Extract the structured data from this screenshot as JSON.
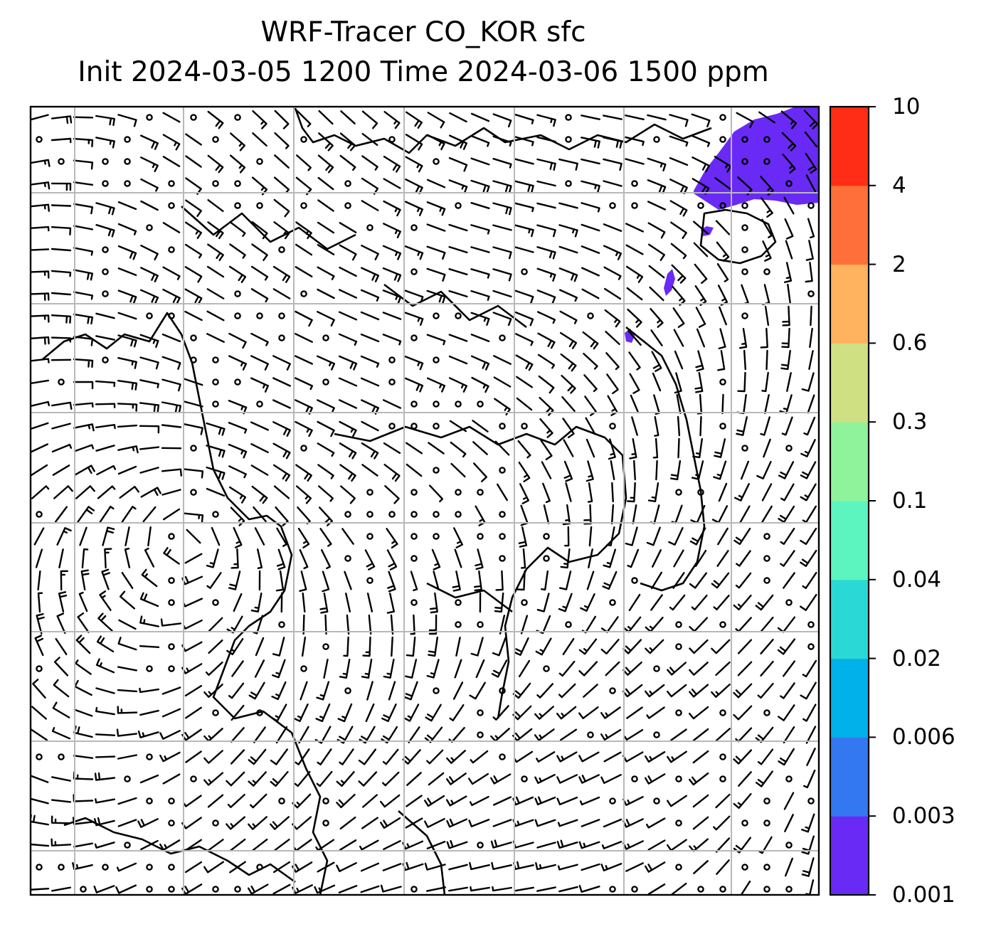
{
  "title": {
    "line1": "WRF-Tracer CO_KOR sfc",
    "line2": "Init 2024-03-05 1200 Time 2024-03-06 1500 ppm"
  },
  "colorbar": {
    "levels": [
      "0.001",
      "0.003",
      "0.006",
      "0.02",
      "0.04",
      "0.1",
      "0.3",
      "0.6",
      "2",
      "4",
      "10"
    ],
    "colors": [
      "#6a2af5",
      "#3478f1",
      "#00b1ea",
      "#2ad9d5",
      "#5cf5c0",
      "#8ff39b",
      "#cfe082",
      "#ffb35f",
      "#ff6f3a",
      "#ff2d16"
    ]
  },
  "map": {
    "grid_color": "#b8b8b8",
    "tracer_fill_color": "#6a2af5",
    "field": "CO_KOR surface tracer concentration with 10 m wind barbs"
  }
}
